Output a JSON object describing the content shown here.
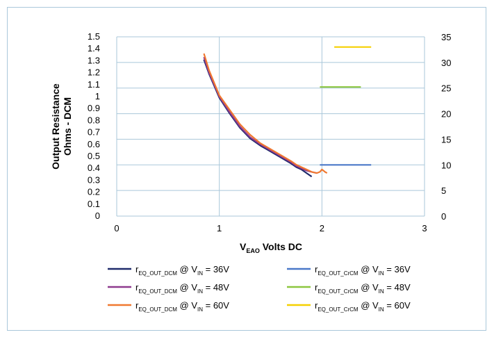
{
  "chart_data": {
    "type": "line",
    "title": "",
    "xlabel_main": "V",
    "xlabel_sub": "EAO",
    "xlabel_rest": " Volts DC",
    "ylabel_line1": "Output Resistance",
    "ylabel_line2": "Ohms - DCM",
    "xlim": [
      0,
      3
    ],
    "ylim_left": [
      0,
      1.5
    ],
    "ylim_right": [
      0,
      35
    ],
    "x_ticks": [
      "0",
      "1",
      "2",
      "3"
    ],
    "y_left_ticks": [
      "0",
      "0.1",
      "0.2",
      "0.3",
      "0.4",
      "0.5",
      "0.6",
      "0.7",
      "0.8",
      "0.9",
      "1",
      "1.1",
      "1.2",
      "1.3",
      "1.4",
      "1.5"
    ],
    "y_right_ticks": [
      "0",
      "5",
      "10",
      "15",
      "20",
      "25",
      "30",
      "35"
    ],
    "grid": "vertical major lines; horizontal lines on right axis ticks",
    "legend_position": "bottom",
    "series": [
      {
        "label_main": "r",
        "label_sub": "EQ_OUT_DCM",
        "label_mid": " @ V",
        "label_sub2": "IN",
        "label_end": " = 36V",
        "color": "#1f2a6b",
        "axis": "left",
        "x": [
          0.85,
          0.9,
          1.0,
          1.1,
          1.2,
          1.3,
          1.4,
          1.5,
          1.6,
          1.7,
          1.75,
          1.8,
          1.85,
          1.9
        ],
        "y": [
          1.31,
          1.19,
          0.99,
          0.86,
          0.74,
          0.65,
          0.59,
          0.54,
          0.49,
          0.44,
          0.41,
          0.39,
          0.36,
          0.33
        ]
      },
      {
        "label_main": "r",
        "label_sub": "EQ_OUT_DCM",
        "label_mid": " @ V",
        "label_sub2": "IN",
        "label_end": " = 48V",
        "color": "#8e3a8e",
        "axis": "left",
        "x": [
          0.85,
          0.9,
          1.0,
          1.1,
          1.2,
          1.3,
          1.4,
          1.5,
          1.6,
          1.7,
          1.75,
          1.8,
          1.85,
          1.9,
          1.95
        ],
        "y": [
          1.33,
          1.2,
          1.0,
          0.87,
          0.75,
          0.66,
          0.6,
          0.55,
          0.5,
          0.45,
          0.42,
          0.4,
          0.38,
          0.37,
          0.36
        ]
      },
      {
        "label_main": "r",
        "label_sub": "EQ_OUT_DCM",
        "label_mid": " @ V",
        "label_sub2": "IN",
        "label_end": " = 60V",
        "color": "#f07830",
        "axis": "left",
        "x": [
          0.85,
          0.9,
          1.0,
          1.1,
          1.2,
          1.3,
          1.4,
          1.5,
          1.6,
          1.7,
          1.75,
          1.8,
          1.85,
          1.9,
          1.95,
          1.98,
          2.0,
          2.03,
          2.05
        ],
        "y": [
          1.36,
          1.22,
          1.01,
          0.89,
          0.77,
          0.68,
          0.61,
          0.56,
          0.51,
          0.46,
          0.43,
          0.41,
          0.39,
          0.37,
          0.36,
          0.37,
          0.39,
          0.37,
          0.36
        ]
      },
      {
        "label_main": "r",
        "label_sub": "EQ_OUT_CrCM",
        "label_mid": " @ V",
        "label_sub2": "IN",
        "label_end": " = 36V",
        "color": "#4a78c8",
        "axis": "right",
        "x": [
          1.98,
          2.48
        ],
        "y": [
          10,
          10
        ]
      },
      {
        "label_main": "r",
        "label_sub": "EQ_OUT_CrCM",
        "label_mid": " @ V",
        "label_sub2": "IN",
        "label_end": " = 48V",
        "color": "#8cc63f",
        "axis": "right",
        "x": [
          1.98,
          2.38
        ],
        "y": [
          25.2,
          25.2
        ]
      },
      {
        "label_main": "r",
        "label_sub": "EQ_OUT_CrCM",
        "label_mid": " @ V",
        "label_sub2": "IN",
        "label_end": " = 60V",
        "color": "#f5d000",
        "axis": "right",
        "x": [
          2.12,
          2.48
        ],
        "y": [
          33,
          33
        ]
      }
    ]
  }
}
